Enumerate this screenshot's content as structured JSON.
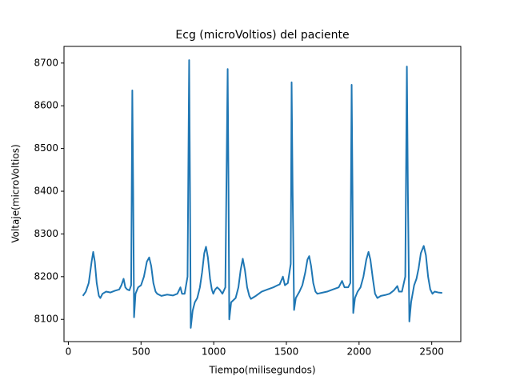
{
  "chart_data": {
    "type": "line",
    "title": "Ecg (microVoltios) del paciente",
    "x_label": "Tiempo(milisegundos)",
    "y_label": "Voltaje(microVoltios)",
    "x": [
      100,
      120,
      140,
      160,
      171,
      182,
      195,
      210,
      220,
      235,
      260,
      290,
      320,
      350,
      365,
      380,
      392,
      405,
      420,
      432,
      440,
      446,
      452,
      462,
      480,
      500,
      520,
      540,
      556,
      570,
      585,
      600,
      611,
      640,
      680,
      720,
      750,
      771,
      782,
      800,
      820,
      831,
      837,
      842,
      855,
      870,
      887,
      905,
      920,
      935,
      947,
      960,
      975,
      987,
      997,
      1010,
      1024,
      1040,
      1060,
      1080,
      1096,
      1102,
      1107,
      1120,
      1151,
      1170,
      1185,
      1200,
      1215,
      1230,
      1245,
      1256,
      1290,
      1330,
      1370,
      1410,
      1440,
      1454,
      1470,
      1476,
      1490,
      1510,
      1530,
      1536,
      1543,
      1553,
      1565,
      1590,
      1610,
      1630,
      1645,
      1657,
      1670,
      1685,
      1700,
      1713,
      1740,
      1780,
      1820,
      1860,
      1883,
      1900,
      1925,
      1940,
      1949,
      1955,
      1960,
      1972,
      1990,
      2010,
      2030,
      2050,
      2065,
      2078,
      2095,
      2110,
      2126,
      2150,
      2180,
      2210,
      2240,
      2263,
      2275,
      2295,
      2318,
      2329,
      2336,
      2346,
      2358,
      2379,
      2395,
      2410,
      2425,
      2445,
      2460,
      2475,
      2490,
      2505,
      2520,
      2545,
      2572
    ],
    "series": [
      {
        "name": "ecg",
        "color": "#1f77b4",
        "values": [
          8155,
          8165,
          8185,
          8235,
          8258,
          8235,
          8185,
          8155,
          8150,
          8160,
          8165,
          8163,
          8167,
          8170,
          8180,
          8195,
          8175,
          8170,
          8168,
          8180,
          8636,
          8400,
          8105,
          8160,
          8175,
          8180,
          8200,
          8235,
          8245,
          8225,
          8185,
          8165,
          8160,
          8155,
          8158,
          8156,
          8160,
          8175,
          8160,
          8160,
          8200,
          8707,
          8400,
          8080,
          8120,
          8140,
          8150,
          8175,
          8210,
          8255,
          8270,
          8245,
          8195,
          8170,
          8160,
          8170,
          8175,
          8170,
          8160,
          8175,
          8686,
          8400,
          8100,
          8140,
          8150,
          8175,
          8215,
          8242,
          8215,
          8175,
          8155,
          8148,
          8155,
          8165,
          8170,
          8175,
          8180,
          8182,
          8195,
          8200,
          8180,
          8185,
          8230,
          8655,
          8400,
          8122,
          8150,
          8165,
          8180,
          8210,
          8240,
          8248,
          8225,
          8185,
          8165,
          8160,
          8162,
          8165,
          8170,
          8175,
          8190,
          8175,
          8175,
          8185,
          8649,
          8400,
          8115,
          8150,
          8165,
          8175,
          8200,
          8240,
          8258,
          8240,
          8195,
          8160,
          8150,
          8155,
          8157,
          8160,
          8168,
          8178,
          8165,
          8165,
          8200,
          8692,
          8400,
          8095,
          8140,
          8180,
          8195,
          8220,
          8255,
          8272,
          8250,
          8200,
          8170,
          8160,
          8165,
          8163,
          8162
        ]
      }
    ],
    "xlim": [
      -30,
      2700
    ],
    "ylim": [
      8048,
      8739
    ],
    "xticks": [
      0,
      500,
      1000,
      1500,
      2000,
      2500
    ],
    "yticks": [
      8100,
      8200,
      8300,
      8400,
      8500,
      8600,
      8700
    ]
  }
}
